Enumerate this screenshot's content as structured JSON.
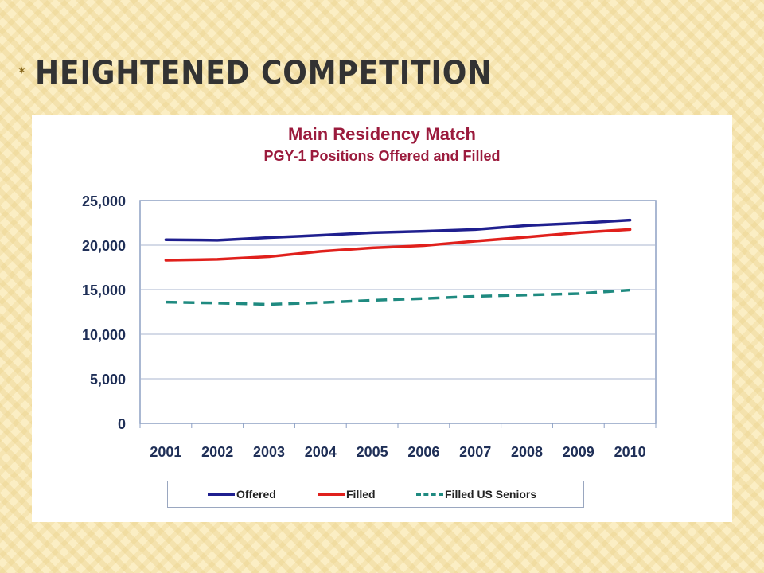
{
  "slide": {
    "title": "Heightened Competition"
  },
  "colors": {
    "title_text": "#333333",
    "chart_title": "#9b1b3d",
    "offered": "#1f1f8f",
    "filled": "#e0201c",
    "filled_us_seniors": "#1f8a80"
  },
  "chart_data": {
    "type": "line",
    "title": "Main Residency Match",
    "subtitle": "PGY-1 Positions Offered and Filled",
    "xlabel": "",
    "ylabel": "",
    "categories": [
      "2001",
      "2002",
      "2003",
      "2004",
      "2005",
      "2006",
      "2007",
      "2008",
      "2009",
      "2010"
    ],
    "ylim": [
      0,
      25000
    ],
    "yticks": [
      "0",
      "5,000",
      "10,000",
      "15,000",
      "20,000",
      "25,000"
    ],
    "grid": true,
    "legend_position": "bottom",
    "series": [
      {
        "name": "Offered",
        "values": [
          20600,
          20550,
          20850,
          21100,
          21400,
          21550,
          21750,
          22200,
          22450,
          22800
        ],
        "style": "solid"
      },
      {
        "name": "Filled",
        "values": [
          18300,
          18400,
          18700,
          19300,
          19700,
          19950,
          20450,
          20900,
          21400,
          21750
        ],
        "style": "solid"
      },
      {
        "name": "Filled US Seniors",
        "values": [
          13600,
          13500,
          13350,
          13550,
          13800,
          14000,
          14250,
          14400,
          14550,
          14950
        ],
        "style": "dashed"
      }
    ]
  }
}
